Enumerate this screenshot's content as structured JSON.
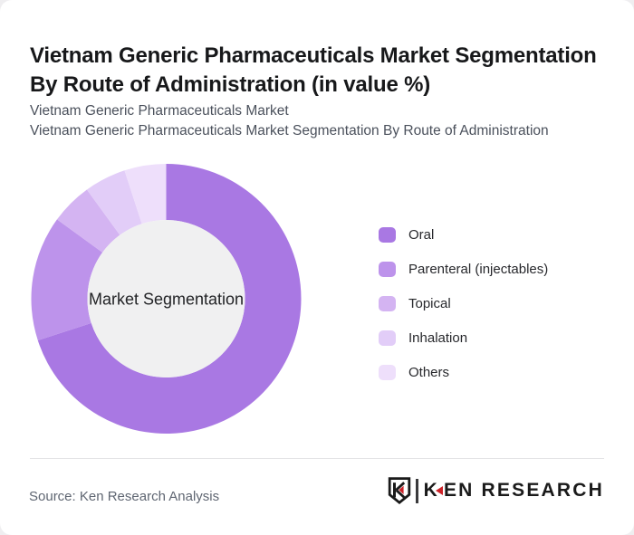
{
  "header": {
    "subtitle_line1": "Vietnam Generic Pharmaceuticals Market",
    "subtitle_line2": "Vietnam Generic Pharmaceuticals Market Segmentation By Route of Administration"
  },
  "chart_data": {
    "type": "pie",
    "variant": "donut",
    "title": "Vietnam Generic Pharmaceuticals Market Segmentation By Route of Administration (in value %)",
    "center_label": "Market Segmentation",
    "unit": "% of market value",
    "start_angle_deg": 0,
    "direction": "clockwise",
    "legend_position": "right",
    "values_are_estimated_from_arc_angles": true,
    "inner_disc_color": "#f0f0f1",
    "segments": [
      {
        "label": "Oral",
        "value": 70,
        "color": "#a978e3"
      },
      {
        "label": "Parenteral (injectables)",
        "value": 15,
        "color": "#bd93eb"
      },
      {
        "label": "Topical",
        "value": 5,
        "color": "#d4b4f2"
      },
      {
        "label": "Inhalation",
        "value": 5,
        "color": "#e2cdf8"
      },
      {
        "label": "Others",
        "value": 5,
        "color": "#eedffb"
      }
    ]
  },
  "footer": {
    "source_text": "Source: Ken Research Analysis",
    "logo": {
      "wordmark_k": "K",
      "wordmark_rest": "EN RESEARCH"
    }
  }
}
